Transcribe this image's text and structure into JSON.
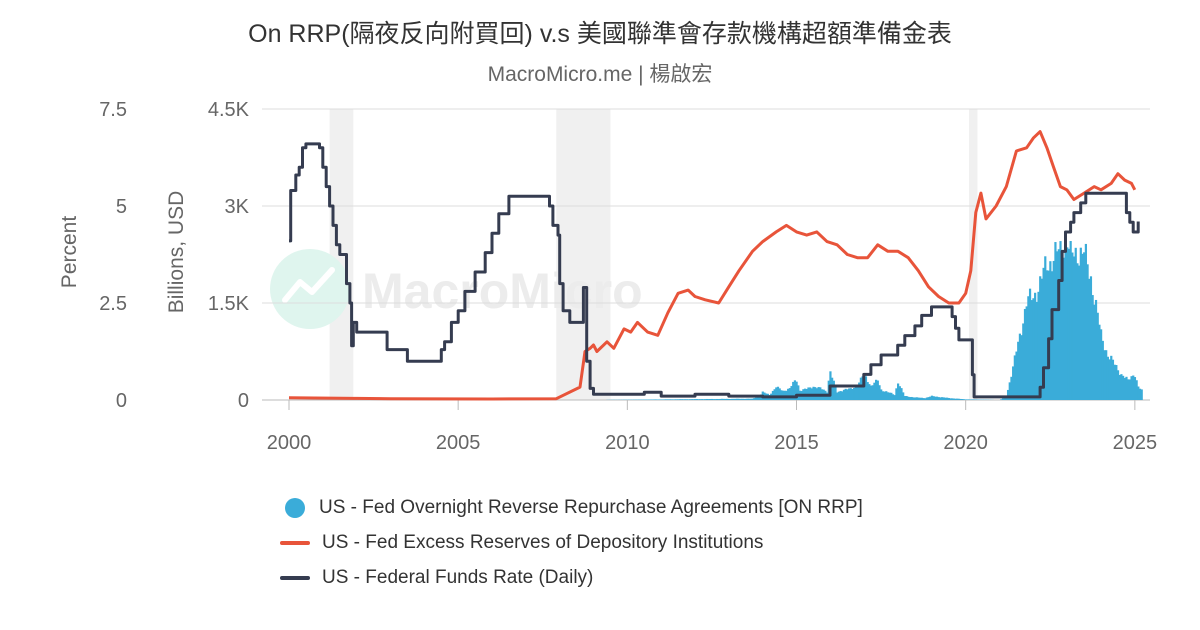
{
  "chart_data": {
    "type": "line",
    "title": "On RRP(隔夜反向附買回) v.s 美國聯準會存款機構超額準備金表",
    "subtitle": "MacroMicro.me | 楊啟宏",
    "watermark": "MacroMicro",
    "x_range": [
      2000,
      2025.3
    ],
    "x_ticks": [
      "2000",
      "2005",
      "2010",
      "2015",
      "2020",
      "2025"
    ],
    "y_left": {
      "label": "Percent",
      "range": [
        0,
        7.5
      ],
      "ticks": [
        "0",
        "2.5",
        "5",
        "7.5"
      ]
    },
    "y_right": {
      "label": "Billions, USD",
      "range": [
        0,
        4500
      ],
      "ticks": [
        "0",
        "1.5K",
        "3K",
        "4.5K"
      ]
    },
    "grid": true,
    "legend_position": "bottom",
    "shaded_periods": [
      [
        2001.2,
        2001.9
      ],
      [
        2007.9,
        2009.5
      ],
      [
        2020.1,
        2020.35
      ]
    ],
    "series": [
      {
        "name": "US - Fed Overnight Reverse Repurchase Agreements [ON RRP]",
        "type": "bar",
        "axis": "right",
        "color": "#3aacd9",
        "points": [
          [
            2008.9,
            0
          ],
          [
            2013.7,
            20
          ],
          [
            2013.9,
            60
          ],
          [
            2014.0,
            120
          ],
          [
            2014.2,
            80
          ],
          [
            2014.4,
            200
          ],
          [
            2014.6,
            140
          ],
          [
            2014.8,
            180
          ],
          [
            2014.99,
            320
          ],
          [
            2015.1,
            150
          ],
          [
            2015.3,
            170
          ],
          [
            2015.5,
            210
          ],
          [
            2015.7,
            180
          ],
          [
            2015.9,
            130
          ],
          [
            2015.99,
            450
          ],
          [
            2016.2,
            120
          ],
          [
            2016.4,
            160
          ],
          [
            2016.6,
            170
          ],
          [
            2016.8,
            220
          ],
          [
            2016.99,
            400
          ],
          [
            2017.2,
            220
          ],
          [
            2017.4,
            300
          ],
          [
            2017.5,
            160
          ],
          [
            2017.7,
            120
          ],
          [
            2017.9,
            80
          ],
          [
            2018.0,
            280
          ],
          [
            2018.2,
            60
          ],
          [
            2018.5,
            40
          ],
          [
            2018.8,
            30
          ],
          [
            2019.0,
            60
          ],
          [
            2019.5,
            30
          ],
          [
            2020.0,
            10
          ],
          [
            2021.0,
            0
          ],
          [
            2021.2,
            50
          ],
          [
            2021.4,
            500
          ],
          [
            2021.6,
            1000
          ],
          [
            2021.8,
            1500
          ],
          [
            2022.0,
            1600
          ],
          [
            2022.2,
            1800
          ],
          [
            2022.4,
            2100
          ],
          [
            2022.6,
            2200
          ],
          [
            2022.8,
            2300
          ],
          [
            2022.99,
            2500
          ],
          [
            2023.1,
            2200
          ],
          [
            2023.3,
            2300
          ],
          [
            2023.5,
            2250
          ],
          [
            2023.7,
            1900
          ],
          [
            2023.9,
            1300
          ],
          [
            2024.0,
            1000
          ],
          [
            2024.2,
            700
          ],
          [
            2024.4,
            550
          ],
          [
            2024.6,
            400
          ],
          [
            2024.8,
            300
          ],
          [
            2024.99,
            420
          ],
          [
            2025.1,
            200
          ],
          [
            2025.2,
            150
          ]
        ]
      },
      {
        "name": "US - Fed Excess Reserves of Depository Institutions",
        "type": "line",
        "axis": "right",
        "color": "#e8543a",
        "points": [
          [
            2000.0,
            35
          ],
          [
            2001.9,
            25
          ],
          [
            2002.0,
            25
          ],
          [
            2003.0,
            20
          ],
          [
            2006.0,
            15
          ],
          [
            2007.9,
            20
          ],
          [
            2008.6,
            200
          ],
          [
            2008.75,
            750
          ],
          [
            2008.9,
            800
          ],
          [
            2009.0,
            850
          ],
          [
            2009.1,
            750
          ],
          [
            2009.4,
            900
          ],
          [
            2009.6,
            800
          ],
          [
            2009.9,
            1100
          ],
          [
            2010.1,
            1050
          ],
          [
            2010.3,
            1200
          ],
          [
            2010.6,
            1050
          ],
          [
            2010.9,
            1000
          ],
          [
            2011.2,
            1350
          ],
          [
            2011.5,
            1650
          ],
          [
            2011.8,
            1700
          ],
          [
            2012.0,
            1600
          ],
          [
            2012.3,
            1550
          ],
          [
            2012.7,
            1500
          ],
          [
            2013.0,
            1750
          ],
          [
            2013.3,
            2000
          ],
          [
            2013.7,
            2300
          ],
          [
            2014.0,
            2450
          ],
          [
            2014.4,
            2600
          ],
          [
            2014.7,
            2700
          ],
          [
            2015.0,
            2600
          ],
          [
            2015.3,
            2550
          ],
          [
            2015.6,
            2600
          ],
          [
            2015.9,
            2450
          ],
          [
            2016.2,
            2400
          ],
          [
            2016.5,
            2250
          ],
          [
            2016.8,
            2200
          ],
          [
            2017.1,
            2200
          ],
          [
            2017.4,
            2400
          ],
          [
            2017.7,
            2300
          ],
          [
            2018.0,
            2300
          ],
          [
            2018.3,
            2200
          ],
          [
            2018.6,
            2000
          ],
          [
            2018.9,
            1750
          ],
          [
            2019.2,
            1600
          ],
          [
            2019.5,
            1500
          ],
          [
            2019.8,
            1500
          ],
          [
            2020.0,
            1650
          ],
          [
            2020.15,
            2000
          ],
          [
            2020.3,
            2900
          ],
          [
            2020.45,
            3200
          ],
          [
            2020.6,
            2800
          ],
          [
            2020.9,
            3000
          ],
          [
            2021.2,
            3300
          ],
          [
            2021.5,
            3850
          ],
          [
            2021.8,
            3900
          ],
          [
            2022.0,
            4050
          ],
          [
            2022.2,
            4150
          ],
          [
            2022.4,
            3900
          ],
          [
            2022.6,
            3600
          ],
          [
            2022.8,
            3300
          ],
          [
            2022.99,
            3250
          ],
          [
            2023.2,
            3100
          ],
          [
            2023.5,
            3200
          ],
          [
            2023.8,
            3300
          ],
          [
            2024.0,
            3250
          ],
          [
            2024.3,
            3350
          ],
          [
            2024.5,
            3500
          ],
          [
            2024.7,
            3400
          ],
          [
            2024.9,
            3350
          ],
          [
            2025.0,
            3250
          ]
        ]
      },
      {
        "name": "US - Federal Funds Rate (Daily)",
        "type": "line",
        "axis": "left",
        "step": true,
        "color": "#353c50",
        "points": [
          [
            2000.0,
            4.1
          ],
          [
            2000.05,
            5.4
          ],
          [
            2000.2,
            5.8
          ],
          [
            2000.3,
            6.0
          ],
          [
            2000.4,
            6.5
          ],
          [
            2000.5,
            6.6
          ],
          [
            2000.9,
            6.5
          ],
          [
            2001.0,
            6.0
          ],
          [
            2001.1,
            5.5
          ],
          [
            2001.2,
            5.0
          ],
          [
            2001.3,
            4.5
          ],
          [
            2001.4,
            4.0
          ],
          [
            2001.5,
            3.75
          ],
          [
            2001.7,
            3.0
          ],
          [
            2001.8,
            2.5
          ],
          [
            2001.85,
            1.4
          ],
          [
            2001.9,
            2.0
          ],
          [
            2002.0,
            1.75
          ],
          [
            2002.9,
            1.3
          ],
          [
            2003.5,
            1.0
          ],
          [
            2004.5,
            1.3
          ],
          [
            2004.6,
            1.5
          ],
          [
            2004.8,
            2.0
          ],
          [
            2005.0,
            2.3
          ],
          [
            2005.2,
            2.8
          ],
          [
            2005.5,
            3.3
          ],
          [
            2005.8,
            3.8
          ],
          [
            2006.0,
            4.3
          ],
          [
            2006.2,
            4.8
          ],
          [
            2006.5,
            5.25
          ],
          [
            2007.7,
            5.0
          ],
          [
            2007.8,
            4.5
          ],
          [
            2007.95,
            4.25
          ],
          [
            2008.0,
            3.0
          ],
          [
            2008.1,
            2.3
          ],
          [
            2008.3,
            2.0
          ],
          [
            2008.7,
            2.9
          ],
          [
            2008.8,
            1.0
          ],
          [
            2008.9,
            0.3
          ],
          [
            2009.0,
            0.15
          ],
          [
            2010.0,
            0.15
          ],
          [
            2010.5,
            0.2
          ],
          [
            2011.0,
            0.1
          ],
          [
            2012.0,
            0.15
          ],
          [
            2013.0,
            0.1
          ],
          [
            2014.0,
            0.08
          ],
          [
            2015.0,
            0.12
          ],
          [
            2015.99,
            0.36
          ],
          [
            2016.99,
            0.66
          ],
          [
            2017.2,
            0.91
          ],
          [
            2017.5,
            1.16
          ],
          [
            2017.99,
            1.41
          ],
          [
            2018.2,
            1.66
          ],
          [
            2018.5,
            1.91
          ],
          [
            2018.7,
            2.18
          ],
          [
            2018.99,
            2.4
          ],
          [
            2019.5,
            2.4
          ],
          [
            2019.6,
            2.15
          ],
          [
            2019.7,
            1.85
          ],
          [
            2019.8,
            1.55
          ],
          [
            2020.1,
            1.55
          ],
          [
            2020.2,
            0.65
          ],
          [
            2020.25,
            0.08
          ],
          [
            2021.0,
            0.08
          ],
          [
            2022.2,
            0.33
          ],
          [
            2022.3,
            0.83
          ],
          [
            2022.45,
            1.58
          ],
          [
            2022.55,
            2.33
          ],
          [
            2022.75,
            3.08
          ],
          [
            2022.85,
            3.83
          ],
          [
            2022.95,
            4.33
          ],
          [
            2023.1,
            4.58
          ],
          [
            2023.2,
            4.83
          ],
          [
            2023.4,
            5.08
          ],
          [
            2023.55,
            5.33
          ],
          [
            2024.7,
            5.33
          ],
          [
            2024.75,
            4.83
          ],
          [
            2024.85,
            4.58
          ],
          [
            2024.95,
            4.33
          ],
          [
            2025.1,
            4.6
          ]
        ]
      }
    ]
  }
}
